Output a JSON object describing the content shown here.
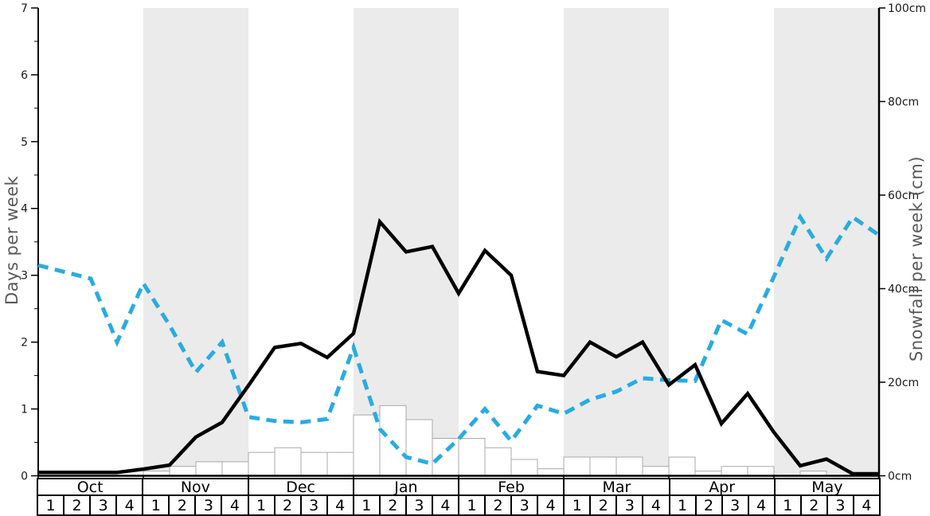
{
  "colors": {
    "black_line": "#000000",
    "blue_dashed_line": "#29ABE2",
    "month_band": "#EBEBEB",
    "bar_fill": "#FFFFFF",
    "bar_border": "#AAAAAA",
    "axis_title_text": "#595959",
    "tick_text": "#1A1A1A",
    "table_border": "#000000"
  },
  "chart_data": {
    "type": "line+bar",
    "title": "",
    "months": [
      "Oct",
      "Nov",
      "Dec",
      "Jan",
      "Feb",
      "Mar",
      "Apr",
      "May"
    ],
    "week_labels": [
      "1",
      "2",
      "3",
      "4"
    ],
    "shaded_months": [
      "Nov",
      "Jan",
      "Mar",
      "May"
    ],
    "left_axis": {
      "label": "Days per week",
      "min": 0,
      "max": 7,
      "tick_step": 1,
      "minor_tick_step": 0.5,
      "tick_labels": [
        "0",
        "1",
        "2",
        "3",
        "4",
        "5",
        "6",
        "7"
      ]
    },
    "right_axis": {
      "label": "Snowfall per week (cm)",
      "min": 0,
      "max": 100,
      "tick_step": 20,
      "tick_labels": [
        "0cm",
        "20cm",
        "40cm",
        "60cm",
        "80cm",
        "100cm"
      ]
    },
    "series": [
      {
        "name": "days-per-week-solid-black",
        "type": "line",
        "axis": "left",
        "line_style": "solid",
        "values_at_week_boundaries": [
          0.05,
          0.05,
          0.05,
          0.05,
          0.1,
          0.16,
          0.58,
          0.8,
          1.35,
          1.92,
          1.98,
          1.77,
          2.13,
          3.8,
          3.35,
          3.43,
          2.73,
          3.37,
          3.0,
          1.56,
          1.5,
          2.0,
          1.78,
          2.0,
          1.36,
          1.66,
          0.78,
          1.23,
          0.65,
          0.15,
          0.25,
          0.03,
          0.03
        ]
      },
      {
        "name": "days-per-week-dashed-blue",
        "type": "line",
        "axis": "left",
        "line_style": "dashed",
        "values_at_week_boundaries": [
          3.15,
          3.05,
          2.95,
          2.0,
          2.88,
          2.25,
          1.55,
          2.0,
          0.88,
          0.82,
          0.8,
          0.85,
          1.92,
          0.7,
          0.28,
          0.18,
          0.55,
          1.0,
          0.52,
          1.05,
          0.93,
          1.14,
          1.26,
          1.46,
          1.43,
          1.42,
          2.33,
          2.12,
          2.98,
          3.87,
          3.25,
          3.87,
          3.6
        ]
      },
      {
        "name": "snowfall-per-week-bars",
        "type": "bar",
        "axis": "right",
        "values_per_week": [
          0,
          0,
          0,
          0,
          1,
          2,
          3,
          3,
          5,
          6,
          5,
          5,
          13,
          15,
          12,
          8,
          8,
          6,
          3.5,
          1.5,
          4,
          4,
          4,
          2,
          4,
          1,
          2,
          2,
          0,
          1,
          0,
          0
        ]
      }
    ]
  }
}
